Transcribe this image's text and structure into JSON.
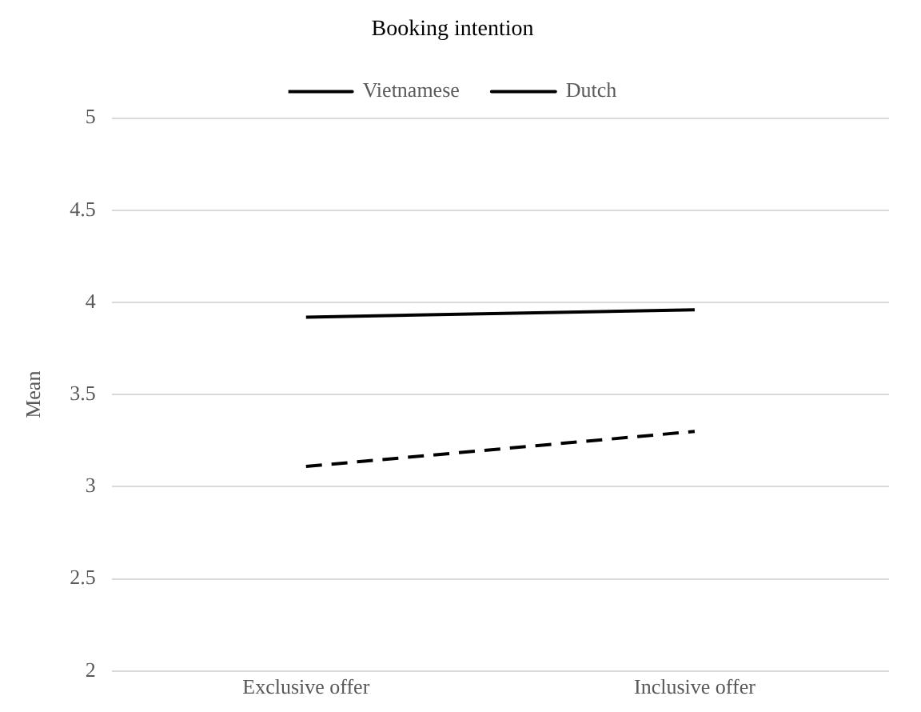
{
  "chart_data": {
    "type": "line",
    "title": "Booking intention",
    "ylabel": "Mean",
    "categories": [
      "Exclusive offer",
      "Inclusive offer"
    ],
    "series": [
      {
        "name": "Vietnamese",
        "color": "#000000",
        "values": [
          3.11,
          3.3
        ],
        "line_style": "dashed"
      },
      {
        "name": "Dutch",
        "color": "#000000",
        "values": [
          3.92,
          3.96
        ],
        "line_style": "solid"
      }
    ],
    "ylim": [
      2,
      5
    ],
    "yticks": [
      2,
      2.5,
      3,
      3.5,
      4,
      4.5,
      5
    ],
    "grid": "y",
    "legend": "top",
    "marker": "none"
  }
}
